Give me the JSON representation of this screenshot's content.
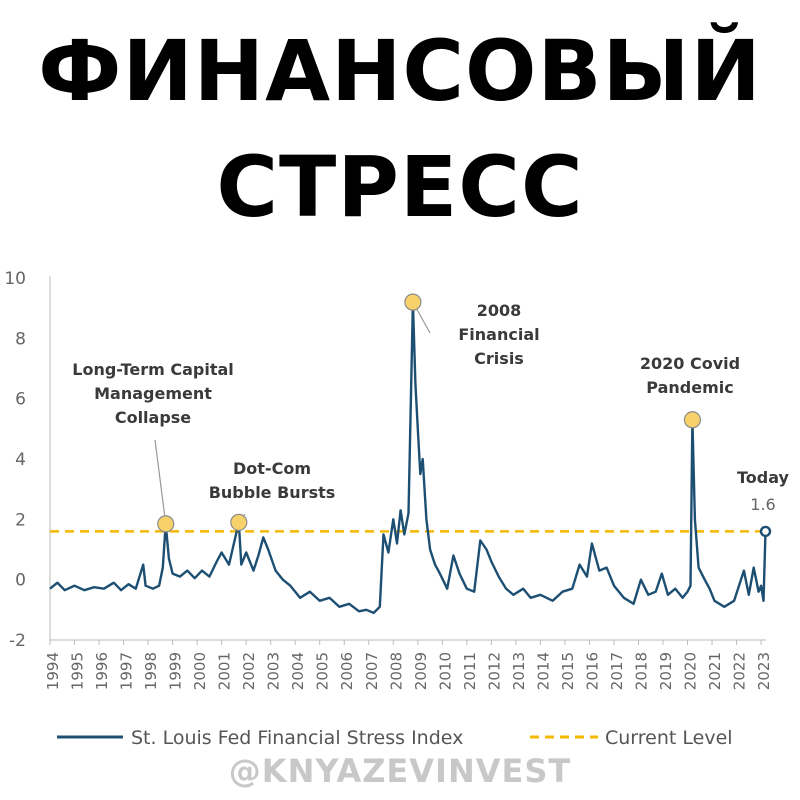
{
  "headline": {
    "line1": "ФИНАНСОВЫЙ",
    "line2": "СТРЕСС"
  },
  "watermark": "@KNYAZEVINVEST",
  "colors": {
    "series": "#1d4f73",
    "current_level": "#f5b800",
    "marker_fill": "#f7d26a"
  },
  "chart_data": {
    "type": "line",
    "title": "",
    "xlabel": "",
    "ylabel": "",
    "xlim": [
      1994,
      2023.2
    ],
    "ylim": [
      -2,
      10
    ],
    "yticks": [
      -2,
      0,
      2,
      4,
      6,
      8,
      10
    ],
    "xticks": [
      "1994",
      "1995",
      "1996",
      "1997",
      "1998",
      "1999",
      "2000",
      "2001",
      "2002",
      "2003",
      "2004",
      "2005",
      "2006",
      "2007",
      "2008",
      "2009",
      "2010",
      "2011",
      "2012",
      "2013",
      "2014",
      "2015",
      "2016",
      "2017",
      "2018",
      "2019",
      "2020",
      "2021",
      "2022",
      "2023"
    ],
    "grid": false,
    "legend_position": "bottom",
    "series": [
      {
        "name": "St. Louis Fed Financial Stress Index",
        "points": [
          [
            1994.0,
            -0.3
          ],
          [
            1994.3,
            -0.1
          ],
          [
            1994.6,
            -0.35
          ],
          [
            1995.0,
            -0.2
          ],
          [
            1995.4,
            -0.35
          ],
          [
            1995.8,
            -0.25
          ],
          [
            1996.2,
            -0.3
          ],
          [
            1996.6,
            -0.1
          ],
          [
            1996.9,
            -0.35
          ],
          [
            1997.2,
            -0.15
          ],
          [
            1997.5,
            -0.3
          ],
          [
            1997.8,
            0.5
          ],
          [
            1997.9,
            -0.2
          ],
          [
            1998.2,
            -0.3
          ],
          [
            1998.45,
            -0.2
          ],
          [
            1998.6,
            0.4
          ],
          [
            1998.72,
            1.85
          ],
          [
            1998.85,
            0.7
          ],
          [
            1999.0,
            0.2
          ],
          [
            1999.3,
            0.1
          ],
          [
            1999.6,
            0.3
          ],
          [
            1999.9,
            0.05
          ],
          [
            2000.2,
            0.3
          ],
          [
            2000.5,
            0.1
          ],
          [
            2000.8,
            0.6
          ],
          [
            2001.0,
            0.9
          ],
          [
            2001.3,
            0.5
          ],
          [
            2001.7,
            1.9
          ],
          [
            2001.8,
            0.5
          ],
          [
            2002.0,
            0.9
          ],
          [
            2002.3,
            0.3
          ],
          [
            2002.5,
            0.8
          ],
          [
            2002.7,
            1.4
          ],
          [
            2002.9,
            1.0
          ],
          [
            2003.2,
            0.3
          ],
          [
            2003.5,
            0.0
          ],
          [
            2003.8,
            -0.2
          ],
          [
            2004.2,
            -0.6
          ],
          [
            2004.6,
            -0.4
          ],
          [
            2005.0,
            -0.7
          ],
          [
            2005.4,
            -0.6
          ],
          [
            2005.8,
            -0.9
          ],
          [
            2006.2,
            -0.8
          ],
          [
            2006.6,
            -1.05
          ],
          [
            2006.9,
            -1.0
          ],
          [
            2007.2,
            -1.1
          ],
          [
            2007.45,
            -0.9
          ],
          [
            2007.6,
            1.5
          ],
          [
            2007.8,
            0.9
          ],
          [
            2008.0,
            2.0
          ],
          [
            2008.15,
            1.2
          ],
          [
            2008.3,
            2.3
          ],
          [
            2008.45,
            1.5
          ],
          [
            2008.62,
            2.2
          ],
          [
            2008.72,
            6.0
          ],
          [
            2008.8,
            9.2
          ],
          [
            2008.9,
            6.5
          ],
          [
            2009.0,
            5.0
          ],
          [
            2009.1,
            3.5
          ],
          [
            2009.2,
            4.0
          ],
          [
            2009.35,
            2.0
          ],
          [
            2009.5,
            1.0
          ],
          [
            2009.7,
            0.5
          ],
          [
            2009.9,
            0.2
          ],
          [
            2010.2,
            -0.3
          ],
          [
            2010.45,
            0.8
          ],
          [
            2010.7,
            0.2
          ],
          [
            2011.0,
            -0.3
          ],
          [
            2011.3,
            -0.4
          ],
          [
            2011.55,
            1.3
          ],
          [
            2011.8,
            1.0
          ],
          [
            2012.0,
            0.6
          ],
          [
            2012.3,
            0.1
          ],
          [
            2012.6,
            -0.3
          ],
          [
            2012.9,
            -0.5
          ],
          [
            2013.3,
            -0.3
          ],
          [
            2013.6,
            -0.6
          ],
          [
            2014.0,
            -0.5
          ],
          [
            2014.5,
            -0.7
          ],
          [
            2014.9,
            -0.4
          ],
          [
            2015.3,
            -0.3
          ],
          [
            2015.6,
            0.5
          ],
          [
            2015.9,
            0.1
          ],
          [
            2016.1,
            1.2
          ],
          [
            2016.4,
            0.3
          ],
          [
            2016.7,
            0.4
          ],
          [
            2017.0,
            -0.2
          ],
          [
            2017.4,
            -0.6
          ],
          [
            2017.8,
            -0.8
          ],
          [
            2018.1,
            0.0
          ],
          [
            2018.4,
            -0.5
          ],
          [
            2018.7,
            -0.4
          ],
          [
            2018.95,
            0.2
          ],
          [
            2019.2,
            -0.5
          ],
          [
            2019.5,
            -0.3
          ],
          [
            2019.8,
            -0.6
          ],
          [
            2020.0,
            -0.4
          ],
          [
            2020.12,
            -0.2
          ],
          [
            2020.2,
            5.3
          ],
          [
            2020.3,
            2.0
          ],
          [
            2020.45,
            0.4
          ],
          [
            2020.7,
            0.0
          ],
          [
            2020.9,
            -0.3
          ],
          [
            2021.1,
            -0.7
          ],
          [
            2021.5,
            -0.9
          ],
          [
            2021.9,
            -0.7
          ],
          [
            2022.1,
            -0.2
          ],
          [
            2022.3,
            0.3
          ],
          [
            2022.5,
            -0.5
          ],
          [
            2022.7,
            0.4
          ],
          [
            2022.9,
            -0.4
          ],
          [
            2023.0,
            -0.2
          ],
          [
            2023.1,
            -0.7
          ],
          [
            2023.18,
            1.6
          ]
        ]
      },
      {
        "name": "Current Level",
        "value": 1.6,
        "style": "dashed"
      }
    ],
    "annotations": [
      {
        "lines": [
          "Long-Term Capital",
          "Management",
          "Collapse"
        ],
        "x": 1998.72,
        "y": 1.85
      },
      {
        "lines": [
          "Dot-Com",
          "Bubble Bursts"
        ],
        "x": 2001.7,
        "y": 1.9
      },
      {
        "lines": [
          "2008",
          "Financial",
          "Crisis"
        ],
        "x": 2008.8,
        "y": 9.2
      },
      {
        "lines": [
          "2020 Covid",
          "Pandemic"
        ],
        "x": 2020.2,
        "y": 5.3
      },
      {
        "lines": [
          "Today"
        ],
        "value_label": "1.6",
        "x": 2023.18,
        "y": 1.6
      }
    ]
  }
}
